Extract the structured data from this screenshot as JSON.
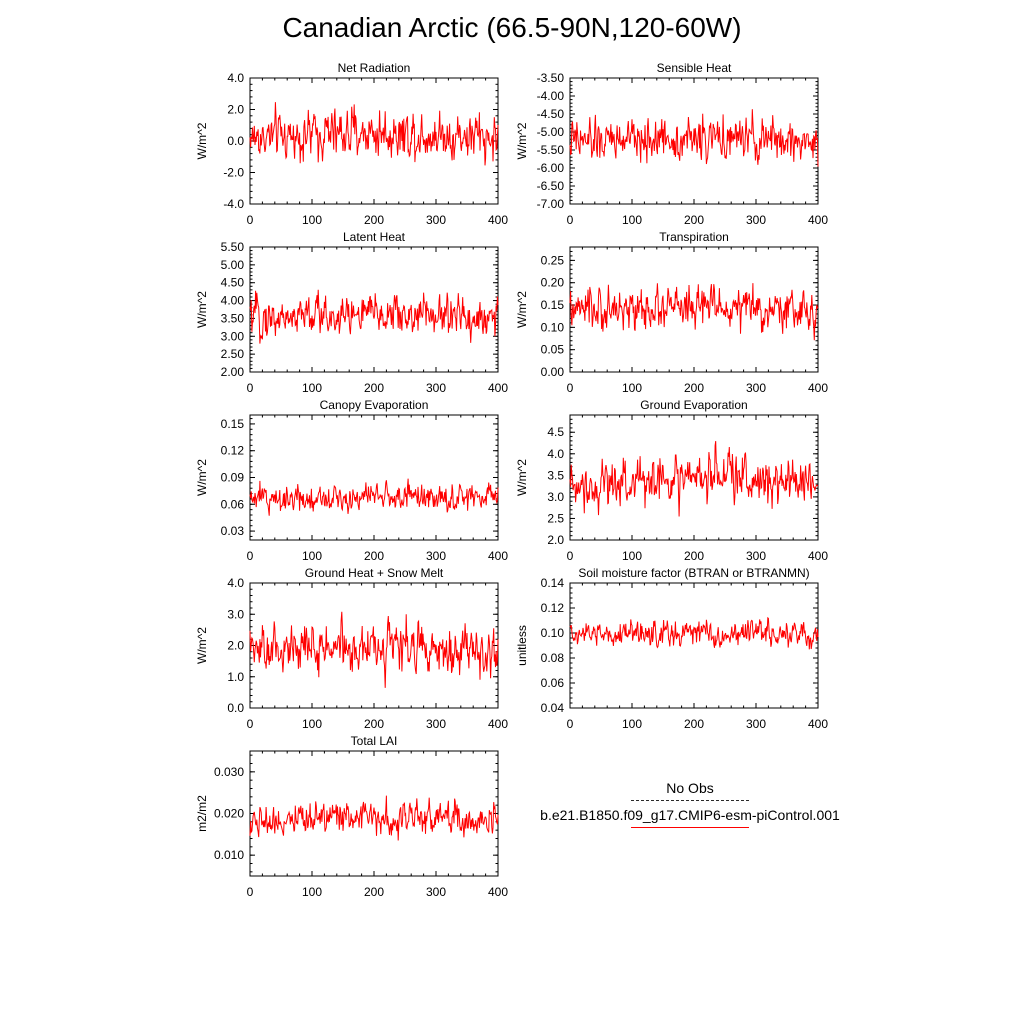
{
  "title": "Canadian Arctic (66.5-90N,120-60W)",
  "legend": {
    "entries": [
      {
        "label": "No Obs",
        "style": "dashed",
        "color": "#2a2a2a"
      },
      {
        "label": "b.e21.B1850.f09_g17.CMIP6-esm-piControl.001",
        "style": "solid",
        "color": "#ff0000"
      }
    ]
  },
  "chart_data": [
    {
      "type": "line",
      "title": "Net Radiation",
      "ylabel": "W/m^2",
      "xlim": [
        0,
        400
      ],
      "ylim": [
        -4.0,
        4.0
      ],
      "xticks": [
        "0",
        "100",
        "200",
        "300",
        "400"
      ],
      "yticks": [
        "-4.0",
        "-2.0",
        "0.0",
        "2.0",
        "4.0"
      ],
      "series": [
        {
          "color": "#ff0000",
          "mean": 0.2,
          "amplitude": 1.2,
          "values_estimated": true
        }
      ]
    },
    {
      "type": "line",
      "title": "Sensible Heat",
      "ylabel": "W/m^2",
      "xlim": [
        0,
        400
      ],
      "ylim": [
        -7.0,
        -3.5
      ],
      "xticks": [
        "0",
        "100",
        "200",
        "300",
        "400"
      ],
      "yticks": [
        "-7.00",
        "-6.50",
        "-6.00",
        "-5.50",
        "-5.00",
        "-4.50",
        "-4.00",
        "-3.50"
      ],
      "series": [
        {
          "color": "#ff0000",
          "mean": -5.3,
          "amplitude": 0.45,
          "values_estimated": true
        }
      ]
    },
    {
      "type": "line",
      "title": "Latent Heat",
      "ylabel": "W/m^2",
      "xlim": [
        0,
        400
      ],
      "ylim": [
        2.0,
        5.5
      ],
      "xticks": [
        "0",
        "100",
        "200",
        "300",
        "400"
      ],
      "yticks": [
        "2.00",
        "2.50",
        "3.00",
        "3.50",
        "4.00",
        "4.50",
        "5.00",
        "5.50"
      ],
      "series": [
        {
          "color": "#ff0000",
          "mean": 3.5,
          "amplitude": 0.45,
          "values_estimated": true
        }
      ]
    },
    {
      "type": "line",
      "title": "Transpiration",
      "ylabel": "W/m^2",
      "xlim": [
        0,
        400
      ],
      "ylim": [
        0.0,
        0.28
      ],
      "xticks": [
        "0",
        "100",
        "200",
        "300",
        "400"
      ],
      "yticks": [
        "0.00",
        "0.05",
        "0.10",
        "0.15",
        "0.20",
        "0.25"
      ],
      "series": [
        {
          "color": "#ff0000",
          "mean": 0.135,
          "amplitude": 0.035,
          "values_estimated": true
        }
      ]
    },
    {
      "type": "line",
      "title": "Canopy Evaporation",
      "ylabel": "W/m^2",
      "xlim": [
        0,
        400
      ],
      "ylim": [
        0.02,
        0.16
      ],
      "xticks": [
        "0",
        "100",
        "200",
        "300",
        "400"
      ],
      "yticks": [
        "0.03",
        "0.06",
        "0.09",
        "0.12",
        "0.15"
      ],
      "series": [
        {
          "color": "#ff0000",
          "mean": 0.066,
          "amplitude": 0.012,
          "values_estimated": true
        }
      ]
    },
    {
      "type": "line",
      "title": "Ground Evaporation",
      "ylabel": "W/m^2",
      "xlim": [
        0,
        400
      ],
      "ylim": [
        2.0,
        4.9
      ],
      "xticks": [
        "0",
        "100",
        "200",
        "300",
        "400"
      ],
      "yticks": [
        "2.0",
        "2.5",
        "3.0",
        "3.5",
        "4.0",
        "4.5"
      ],
      "series": [
        {
          "color": "#ff0000",
          "mean": 3.3,
          "amplitude": 0.45,
          "values_estimated": true
        }
      ]
    },
    {
      "type": "line",
      "title": "Ground Heat + Snow Melt",
      "ylabel": "W/m^2",
      "xlim": [
        0,
        400
      ],
      "ylim": [
        0.0,
        4.0
      ],
      "xticks": [
        "0",
        "100",
        "200",
        "300",
        "400"
      ],
      "yticks": [
        "0.0",
        "1.0",
        "2.0",
        "3.0",
        "4.0"
      ],
      "series": [
        {
          "color": "#ff0000",
          "mean": 1.8,
          "amplitude": 0.6,
          "values_estimated": true
        }
      ]
    },
    {
      "type": "line",
      "title": "Soil moisture factor (BTRAN or BTRANMN)",
      "ylabel": "unitless",
      "xlim": [
        0,
        400
      ],
      "ylim": [
        0.04,
        0.14
      ],
      "xticks": [
        "0",
        "100",
        "200",
        "300",
        "400"
      ],
      "yticks": [
        "0.04",
        "0.06",
        "0.08",
        "0.10",
        "0.12",
        "0.14"
      ],
      "series": [
        {
          "color": "#ff0000",
          "mean": 0.098,
          "amplitude": 0.008,
          "values_estimated": true
        }
      ]
    },
    {
      "type": "line",
      "title": "Total LAI",
      "ylabel": "m2/m2",
      "xlim": [
        0,
        400
      ],
      "ylim": [
        0.005,
        0.035
      ],
      "xticks": [
        "0",
        "100",
        "200",
        "300",
        "400"
      ],
      "yticks": [
        "0.010",
        "0.020",
        "0.030"
      ],
      "series": [
        {
          "color": "#ff0000",
          "mean": 0.0185,
          "amplitude": 0.003,
          "values_estimated": true
        }
      ]
    }
  ]
}
